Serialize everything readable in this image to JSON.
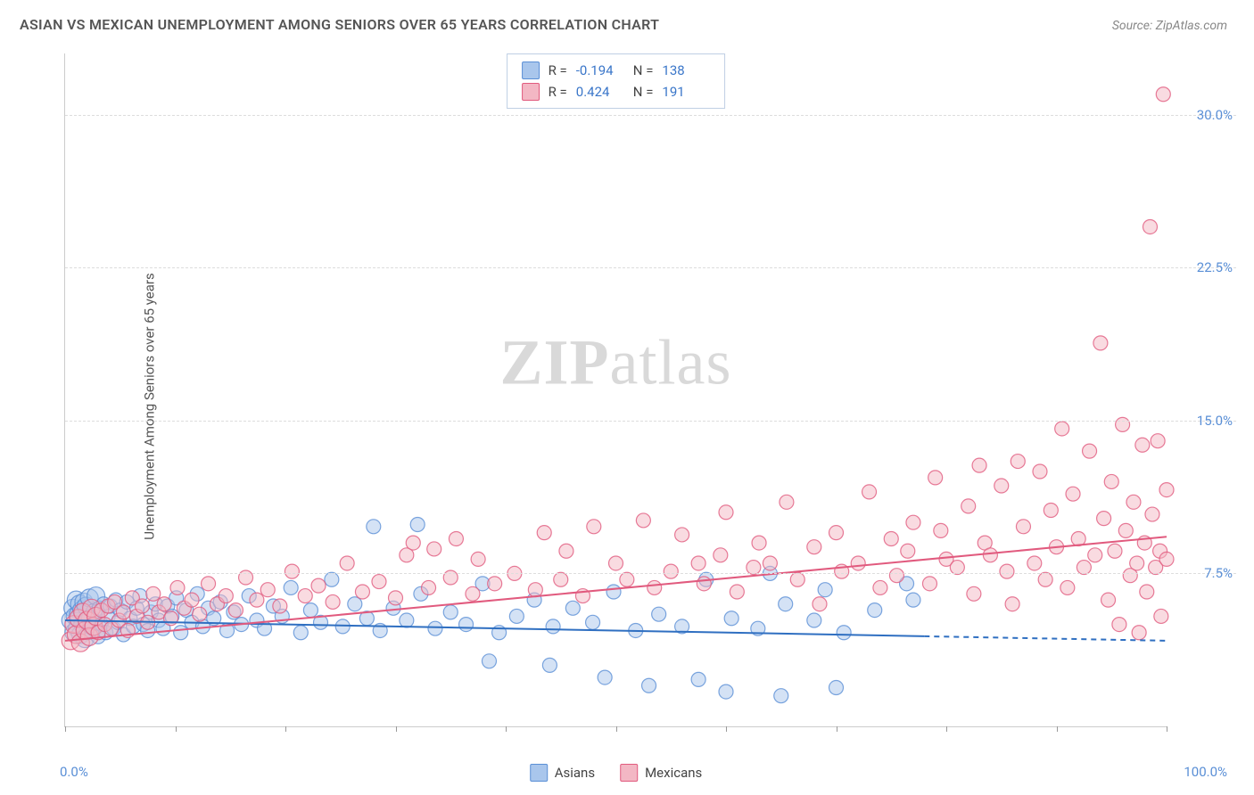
{
  "title": "ASIAN VS MEXICAN UNEMPLOYMENT AMONG SENIORS OVER 65 YEARS CORRELATION CHART",
  "source": "Source: ZipAtlas.com",
  "watermark": {
    "part1": "ZIP",
    "part2": "atlas"
  },
  "y_axis_label": "Unemployment Among Seniors over 65 years",
  "chart": {
    "type": "scatter",
    "xlim": [
      0,
      100
    ],
    "ylim": [
      0,
      33
    ],
    "x_ticks": [
      0,
      10,
      20,
      30,
      40,
      50,
      60,
      70,
      80,
      90,
      100
    ],
    "y_ticks": [
      7.5,
      15.0,
      22.5,
      30.0
    ],
    "y_tick_labels": [
      "7.5%",
      "15.0%",
      "22.5%",
      "30.0%"
    ],
    "x_min_label": "0.0%",
    "x_max_label": "100.0%",
    "grid_color": "#dddddd",
    "background_color": "#ffffff",
    "axis_color": "#cccccc",
    "tick_color": "#999999",
    "tick_label_color": "#5a8fd6",
    "series": [
      {
        "name": "Asians",
        "fill": "#a9c6ec",
        "fill_opacity": 0.5,
        "stroke": "#5a8fd6",
        "stroke_opacity": 0.8,
        "marker": "circle",
        "trend": {
          "y_intercept": 5.2,
          "y_at_100": 4.2,
          "solid_until_x": 78,
          "color": "#2f6fc1",
          "width": 2
        },
        "R": "-0.194",
        "N": "138",
        "points": [
          [
            0.5,
            5.2
          ],
          [
            0.7,
            5.8
          ],
          [
            0.8,
            4.6
          ],
          [
            0.9,
            5.4
          ],
          [
            1.0,
            6.2
          ],
          [
            1.1,
            4.8
          ],
          [
            1.2,
            5.5
          ],
          [
            1.3,
            6.0
          ],
          [
            1.4,
            4.5
          ],
          [
            1.5,
            5.7
          ],
          [
            1.6,
            5.0
          ],
          [
            1.7,
            6.1
          ],
          [
            1.8,
            4.3
          ],
          [
            1.9,
            5.9
          ],
          [
            2.0,
            5.1
          ],
          [
            2.1,
            4.7
          ],
          [
            2.2,
            6.3
          ],
          [
            2.3,
            5.3
          ],
          [
            2.5,
            4.9
          ],
          [
            2.7,
            5.6
          ],
          [
            2.8,
            6.4
          ],
          [
            3.0,
            4.4
          ],
          [
            3.1,
            5.8
          ],
          [
            3.3,
            5.0
          ],
          [
            3.5,
            6.0
          ],
          [
            3.7,
            4.6
          ],
          [
            3.9,
            5.4
          ],
          [
            4.1,
            5.9
          ],
          [
            4.4,
            4.8
          ],
          [
            4.6,
            6.2
          ],
          [
            4.8,
            5.1
          ],
          [
            5.0,
            5.7
          ],
          [
            5.3,
            4.5
          ],
          [
            5.6,
            6.1
          ],
          [
            5.9,
            5.3
          ],
          [
            6.2,
            4.9
          ],
          [
            6.5,
            5.8
          ],
          [
            6.8,
            6.4
          ],
          [
            7.1,
            5.0
          ],
          [
            7.5,
            4.7
          ],
          [
            7.8,
            5.6
          ],
          [
            8.2,
            6.0
          ],
          [
            8.5,
            5.2
          ],
          [
            8.9,
            4.8
          ],
          [
            9.3,
            5.9
          ],
          [
            9.7,
            5.4
          ],
          [
            10.1,
            6.3
          ],
          [
            10.5,
            4.6
          ],
          [
            11.0,
            5.7
          ],
          [
            11.5,
            5.1
          ],
          [
            12.0,
            6.5
          ],
          [
            12.5,
            4.9
          ],
          [
            13.0,
            5.8
          ],
          [
            13.5,
            5.3
          ],
          [
            14.1,
            6.1
          ],
          [
            14.7,
            4.7
          ],
          [
            15.3,
            5.6
          ],
          [
            16.0,
            5.0
          ],
          [
            16.7,
            6.4
          ],
          [
            17.4,
            5.2
          ],
          [
            18.1,
            4.8
          ],
          [
            18.9,
            5.9
          ],
          [
            19.7,
            5.4
          ],
          [
            20.5,
            6.8
          ],
          [
            21.4,
            4.6
          ],
          [
            22.3,
            5.7
          ],
          [
            23.2,
            5.1
          ],
          [
            24.2,
            7.2
          ],
          [
            25.2,
            4.9
          ],
          [
            26.3,
            6.0
          ],
          [
            27.4,
            5.3
          ],
          [
            28.0,
            9.8
          ],
          [
            28.6,
            4.7
          ],
          [
            29.8,
            5.8
          ],
          [
            31.0,
            5.2
          ],
          [
            32.0,
            9.9
          ],
          [
            32.3,
            6.5
          ],
          [
            33.6,
            4.8
          ],
          [
            35.0,
            5.6
          ],
          [
            36.4,
            5.0
          ],
          [
            37.9,
            7.0
          ],
          [
            38.5,
            3.2
          ],
          [
            39.4,
            4.6
          ],
          [
            41.0,
            5.4
          ],
          [
            42.6,
            6.2
          ],
          [
            44.0,
            3.0
          ],
          [
            44.3,
            4.9
          ],
          [
            46.1,
            5.8
          ],
          [
            47.9,
            5.1
          ],
          [
            49.0,
            2.4
          ],
          [
            49.8,
            6.6
          ],
          [
            51.8,
            4.7
          ],
          [
            53.0,
            2.0
          ],
          [
            53.9,
            5.5
          ],
          [
            56.0,
            4.9
          ],
          [
            57.5,
            2.3
          ],
          [
            58.2,
            7.2
          ],
          [
            60.0,
            1.7
          ],
          [
            60.5,
            5.3
          ],
          [
            62.9,
            4.8
          ],
          [
            64.0,
            7.5
          ],
          [
            65.0,
            1.5
          ],
          [
            65.4,
            6.0
          ],
          [
            68.0,
            5.2
          ],
          [
            69.0,
            6.7
          ],
          [
            70.0,
            1.9
          ],
          [
            70.7,
            4.6
          ],
          [
            73.5,
            5.7
          ],
          [
            76.4,
            7.0
          ],
          [
            77.0,
            6.2
          ]
        ]
      },
      {
        "name": "Mexicans",
        "fill": "#f3b7c4",
        "fill_opacity": 0.5,
        "stroke": "#e15a7e",
        "stroke_opacity": 0.8,
        "marker": "circle",
        "trend": {
          "y_intercept": 4.2,
          "y_at_100": 9.3,
          "solid_until_x": 100,
          "color": "#e15a7e",
          "width": 2
        },
        "R": "0.424",
        "N": "191",
        "points": [
          [
            0.5,
            4.2
          ],
          [
            0.8,
            5.0
          ],
          [
            1.0,
            4.5
          ],
          [
            1.2,
            5.3
          ],
          [
            1.4,
            4.1
          ],
          [
            1.6,
            5.6
          ],
          [
            1.8,
            4.7
          ],
          [
            2.0,
            5.2
          ],
          [
            2.2,
            4.4
          ],
          [
            2.4,
            5.8
          ],
          [
            2.6,
            4.9
          ],
          [
            2.8,
            5.4
          ],
          [
            3.0,
            4.6
          ],
          [
            3.3,
            5.7
          ],
          [
            3.6,
            5.0
          ],
          [
            3.9,
            5.9
          ],
          [
            4.2,
            4.8
          ],
          [
            4.5,
            6.1
          ],
          [
            4.9,
            5.2
          ],
          [
            5.3,
            5.6
          ],
          [
            5.7,
            4.7
          ],
          [
            6.1,
            6.3
          ],
          [
            6.5,
            5.4
          ],
          [
            7.0,
            5.9
          ],
          [
            7.5,
            5.1
          ],
          [
            8.0,
            6.5
          ],
          [
            8.5,
            5.6
          ],
          [
            9.0,
            6.0
          ],
          [
            9.6,
            5.3
          ],
          [
            10.2,
            6.8
          ],
          [
            10.8,
            5.8
          ],
          [
            11.5,
            6.2
          ],
          [
            12.2,
            5.5
          ],
          [
            13.0,
            7.0
          ],
          [
            13.8,
            6.0
          ],
          [
            14.6,
            6.4
          ],
          [
            15.5,
            5.7
          ],
          [
            16.4,
            7.3
          ],
          [
            17.4,
            6.2
          ],
          [
            18.4,
            6.7
          ],
          [
            19.5,
            5.9
          ],
          [
            20.6,
            7.6
          ],
          [
            21.8,
            6.4
          ],
          [
            23.0,
            6.9
          ],
          [
            24.3,
            6.1
          ],
          [
            25.6,
            8.0
          ],
          [
            27.0,
            6.6
          ],
          [
            28.5,
            7.1
          ],
          [
            30.0,
            6.3
          ],
          [
            31.0,
            8.4
          ],
          [
            31.6,
            9.0
          ],
          [
            33.0,
            6.8
          ],
          [
            33.5,
            8.7
          ],
          [
            35.0,
            7.3
          ],
          [
            35.5,
            9.2
          ],
          [
            37.0,
            6.5
          ],
          [
            37.5,
            8.2
          ],
          [
            39.0,
            7.0
          ],
          [
            40.8,
            7.5
          ],
          [
            42.7,
            6.7
          ],
          [
            43.5,
            9.5
          ],
          [
            45.0,
            7.2
          ],
          [
            45.5,
            8.6
          ],
          [
            47.0,
            6.4
          ],
          [
            48.0,
            9.8
          ],
          [
            50.0,
            8.0
          ],
          [
            51.0,
            7.2
          ],
          [
            52.5,
            10.1
          ],
          [
            53.5,
            6.8
          ],
          [
            55.0,
            7.6
          ],
          [
            56.0,
            9.4
          ],
          [
            57.5,
            8.0
          ],
          [
            58.0,
            7.0
          ],
          [
            59.5,
            8.4
          ],
          [
            60.0,
            10.5
          ],
          [
            61.0,
            6.6
          ],
          [
            62.5,
            7.8
          ],
          [
            63.0,
            9.0
          ],
          [
            64.0,
            8.0
          ],
          [
            65.5,
            11.0
          ],
          [
            66.5,
            7.2
          ],
          [
            68.0,
            8.8
          ],
          [
            68.5,
            6.0
          ],
          [
            70.0,
            9.5
          ],
          [
            70.5,
            7.6
          ],
          [
            72.0,
            8.0
          ],
          [
            73.0,
            11.5
          ],
          [
            74.0,
            6.8
          ],
          [
            75.0,
            9.2
          ],
          [
            75.5,
            7.4
          ],
          [
            76.5,
            8.6
          ],
          [
            77.0,
            10.0
          ],
          [
            78.5,
            7.0
          ],
          [
            79.0,
            12.2
          ],
          [
            79.5,
            9.6
          ],
          [
            80.0,
            8.2
          ],
          [
            81.0,
            7.8
          ],
          [
            82.0,
            10.8
          ],
          [
            82.5,
            6.5
          ],
          [
            83.0,
            12.8
          ],
          [
            83.5,
            9.0
          ],
          [
            84.0,
            8.4
          ],
          [
            85.0,
            11.8
          ],
          [
            85.5,
            7.6
          ],
          [
            86.0,
            6.0
          ],
          [
            86.5,
            13.0
          ],
          [
            87.0,
            9.8
          ],
          [
            88.0,
            8.0
          ],
          [
            88.5,
            12.5
          ],
          [
            89.0,
            7.2
          ],
          [
            89.5,
            10.6
          ],
          [
            90.0,
            8.8
          ],
          [
            90.5,
            14.6
          ],
          [
            91.0,
            6.8
          ],
          [
            91.5,
            11.4
          ],
          [
            92.0,
            9.2
          ],
          [
            92.5,
            7.8
          ],
          [
            93.0,
            13.5
          ],
          [
            93.5,
            8.4
          ],
          [
            94.0,
            18.8
          ],
          [
            94.3,
            10.2
          ],
          [
            94.7,
            6.2
          ],
          [
            95.0,
            12.0
          ],
          [
            95.3,
            8.6
          ],
          [
            95.7,
            5.0
          ],
          [
            96.0,
            14.8
          ],
          [
            96.3,
            9.6
          ],
          [
            96.7,
            7.4
          ],
          [
            97.0,
            11.0
          ],
          [
            97.3,
            8.0
          ],
          [
            97.5,
            4.6
          ],
          [
            97.8,
            13.8
          ],
          [
            98.0,
            9.0
          ],
          [
            98.2,
            6.6
          ],
          [
            98.5,
            24.5
          ],
          [
            98.7,
            10.4
          ],
          [
            99.0,
            7.8
          ],
          [
            99.2,
            14.0
          ],
          [
            99.4,
            8.6
          ],
          [
            99.5,
            5.4
          ],
          [
            99.7,
            31.0
          ],
          [
            100.0,
            11.6
          ],
          [
            100.0,
            8.2
          ]
        ]
      }
    ]
  },
  "legend": {
    "items": [
      {
        "label": "Asians",
        "fill": "#a9c6ec",
        "stroke": "#5a8fd6"
      },
      {
        "label": "Mexicans",
        "fill": "#f3b7c4",
        "stroke": "#e15a7e"
      }
    ]
  }
}
